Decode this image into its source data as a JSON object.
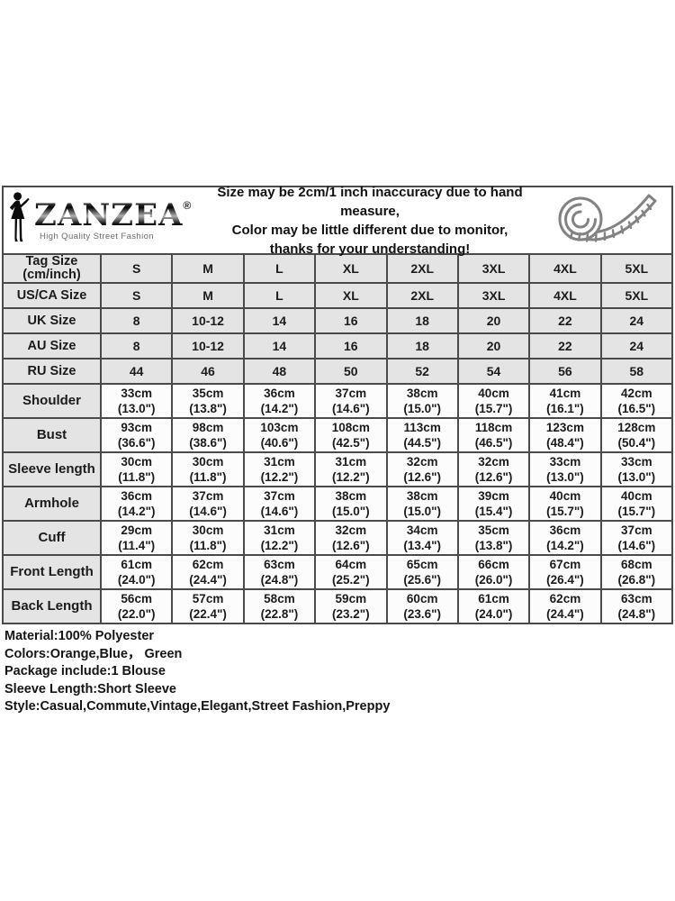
{
  "header": {
    "logo": {
      "brand": "ZANZEA",
      "reg": "®",
      "tagline": "High Quality Street Fashion"
    },
    "notice_lines": [
      "Size may be 2cm/1 inch inaccuracy due to hand measure,",
      "Color may be little different due to monitor,",
      "thanks for your understanding!"
    ]
  },
  "size_table": {
    "columns": [
      "S",
      "M",
      "L",
      "XL",
      "2XL",
      "3XL",
      "4XL",
      "5XL"
    ],
    "rows": [
      {
        "kind": "size",
        "label": "Tag Size",
        "label2": "(cm/inch)",
        "values": [
          "S",
          "M",
          "L",
          "XL",
          "2XL",
          "3XL",
          "4XL",
          "5XL"
        ]
      },
      {
        "kind": "size",
        "label": "US/CA Size",
        "values": [
          "S",
          "M",
          "L",
          "XL",
          "2XL",
          "3XL",
          "4XL",
          "5XL"
        ]
      },
      {
        "kind": "size",
        "label": "UK Size",
        "values": [
          "8",
          "10-12",
          "14",
          "16",
          "18",
          "20",
          "22",
          "24"
        ]
      },
      {
        "kind": "size",
        "label": "AU Size",
        "values": [
          "8",
          "10-12",
          "14",
          "16",
          "18",
          "20",
          "22",
          "24"
        ]
      },
      {
        "kind": "size",
        "label": "RU Size",
        "values": [
          "44",
          "46",
          "48",
          "50",
          "52",
          "54",
          "56",
          "58"
        ]
      },
      {
        "kind": "measure",
        "label": "Shoulder",
        "cm": [
          "33cm",
          "35cm",
          "36cm",
          "37cm",
          "38cm",
          "40cm",
          "41cm",
          "42cm"
        ],
        "inch": [
          "(13.0\")",
          "(13.8\")",
          "(14.2\")",
          "(14.6\")",
          "(15.0\")",
          "(15.7\")",
          "(16.1\")",
          "(16.5\")"
        ]
      },
      {
        "kind": "measure",
        "label": "Bust",
        "cm": [
          "93cm",
          "98cm",
          "103cm",
          "108cm",
          "113cm",
          "118cm",
          "123cm",
          "128cm"
        ],
        "inch": [
          "(36.6\")",
          "(38.6\")",
          "(40.6\")",
          "(42.5\")",
          "(44.5\")",
          "(46.5\")",
          "(48.4\")",
          "(50.4\")"
        ]
      },
      {
        "kind": "measure",
        "label": "Sleeve length",
        "cm": [
          "30cm",
          "30cm",
          "31cm",
          "31cm",
          "32cm",
          "32cm",
          "33cm",
          "33cm"
        ],
        "inch": [
          "(11.8\")",
          "(11.8\")",
          "(12.2\")",
          "(12.2\")",
          "(12.6\")",
          "(12.6\")",
          "(13.0\")",
          "(13.0\")"
        ]
      },
      {
        "kind": "measure",
        "label": "Armhole",
        "cm": [
          "36cm",
          "37cm",
          "37cm",
          "38cm",
          "38cm",
          "39cm",
          "40cm",
          "40cm"
        ],
        "inch": [
          "(14.2\")",
          "(14.6\")",
          "(14.6\")",
          "(15.0\")",
          "(15.0\")",
          "(15.4\")",
          "(15.7\")",
          "(15.7\")"
        ]
      },
      {
        "kind": "measure",
        "label": "Cuff",
        "cm": [
          "29cm",
          "30cm",
          "31cm",
          "32cm",
          "34cm",
          "35cm",
          "36cm",
          "37cm"
        ],
        "inch": [
          "(11.4\")",
          "(11.8\")",
          "(12.2\")",
          "(12.6\")",
          "(13.4\")",
          "(13.8\")",
          "(14.2\")",
          "(14.6\")"
        ]
      },
      {
        "kind": "measure",
        "label": "Front Length",
        "cm": [
          "61cm",
          "62cm",
          "63cm",
          "64cm",
          "65cm",
          "66cm",
          "67cm",
          "68cm"
        ],
        "inch": [
          "(24.0\")",
          "(24.4\")",
          "(24.8\")",
          "(25.2\")",
          "(25.6\")",
          "(26.0\")",
          "(26.4\")",
          "(26.8\")"
        ]
      },
      {
        "kind": "measure",
        "label": "Back Length",
        "cm": [
          "56cm",
          "57cm",
          "58cm",
          "59cm",
          "60cm",
          "61cm",
          "62cm",
          "63cm"
        ],
        "inch": [
          "(22.0\")",
          "(22.4\")",
          "(22.8\")",
          "(23.2\")",
          "(23.6\")",
          "(24.0\")",
          "(24.4\")",
          "(24.8\")"
        ]
      }
    ]
  },
  "details": [
    "Material:100% Polyester",
    "Colors:Orange,Blue， Green",
    "Package include:1 Blouse",
    "Sleeve Length:Short Sleeve",
    "Style:Casual,Commute,Vintage,Elegant,Street Fashion,Preppy"
  ],
  "colors": {
    "grid_border": "#4a4a4a",
    "header_cell_bg": "#e4e4e4",
    "data_cell_bg": "#fcfcfc",
    "tape_icon_stroke": "#828282",
    "text": "#1b1b1b"
  }
}
